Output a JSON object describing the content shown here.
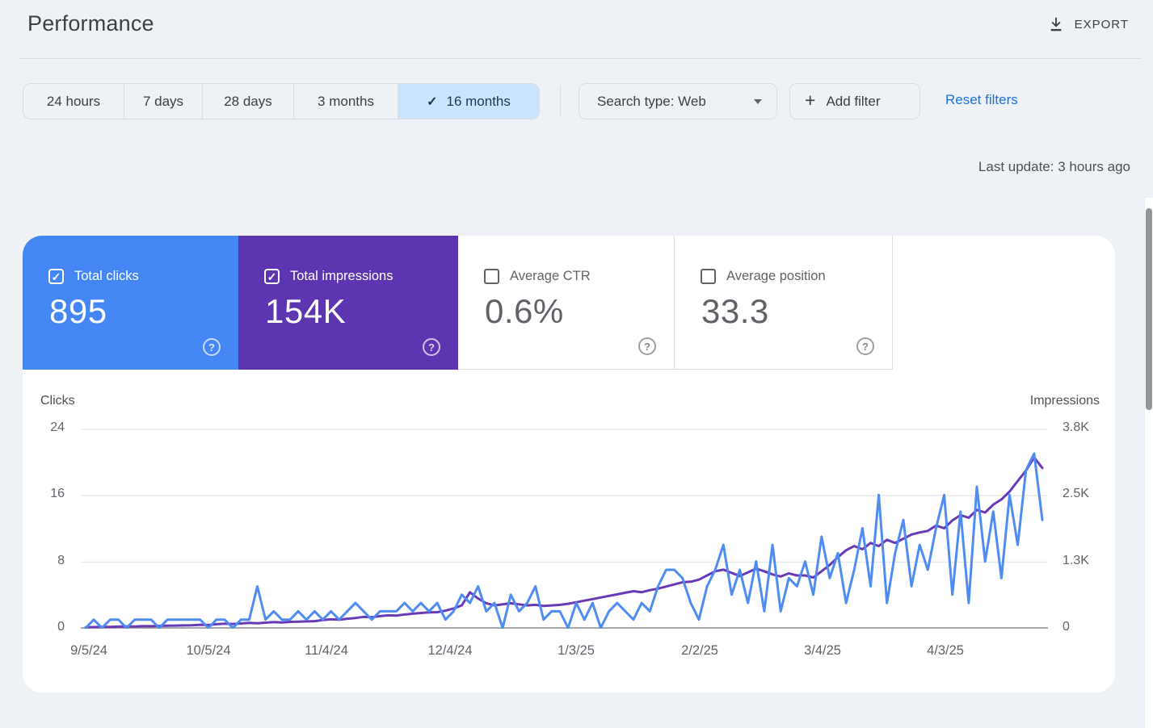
{
  "header": {
    "title": "Performance",
    "export_label": "EXPORT"
  },
  "toolbar": {
    "date_tabs": [
      {
        "label": "24 hours",
        "selected": false
      },
      {
        "label": "7 days",
        "selected": false
      },
      {
        "label": "28 days",
        "selected": false
      },
      {
        "label": "3 months",
        "selected": false
      },
      {
        "label": "16 months",
        "selected": true
      }
    ],
    "search_type_label": "Search type: Web",
    "add_filter_label": "Add filter",
    "reset_filters_label": "Reset filters"
  },
  "status": {
    "last_update": "Last update: 3 hours ago"
  },
  "metric_cards": [
    {
      "label": "Total clicks",
      "value": "895",
      "checked": true,
      "bg": "#4486f4"
    },
    {
      "label": "Total impressions",
      "value": "154K",
      "checked": true,
      "bg": "#5e35b1"
    },
    {
      "label": "Average CTR",
      "value": "0.6%",
      "checked": false,
      "bg": "#ffffff"
    },
    {
      "label": "Average position",
      "value": "33.3",
      "checked": false,
      "bg": "#ffffff"
    }
  ],
  "chart_data": {
    "type": "line",
    "title": "",
    "x_tick_labels": [
      "9/5/24",
      "10/5/24",
      "11/4/24",
      "12/4/24",
      "1/3/25",
      "2/2/25",
      "3/4/25",
      "4/3/25"
    ],
    "x_start": "9/5/24",
    "x_end": "4/29/25",
    "x_interval_days": 2,
    "left_axis": {
      "label": "Clicks",
      "ticks": [
        "0",
        "8",
        "16",
        "24"
      ],
      "min": 0,
      "max": 24
    },
    "right_axis": {
      "label": "Impressions",
      "ticks": [
        "0",
        "1.3K",
        "2.5K",
        "3.8K"
      ],
      "min": 0,
      "max": 3800
    },
    "grid": true,
    "legend_position": "none",
    "series": [
      {
        "name": "Total impressions",
        "axis": "right",
        "color": "#673ab7",
        "values": [
          10,
          15,
          20,
          18,
          25,
          30,
          28,
          35,
          32,
          38,
          42,
          45,
          48,
          50,
          60,
          55,
          70,
          80,
          75,
          85,
          95,
          90,
          100,
          110,
          105,
          115,
          120,
          125,
          130,
          150,
          165,
          155,
          175,
          190,
          210,
          205,
          225,
          240,
          235,
          255,
          270,
          285,
          295,
          300,
          330,
          370,
          430,
          680,
          560,
          470,
          430,
          450,
          470,
          450,
          430,
          440,
          420,
          430,
          440,
          460,
          490,
          520,
          550,
          580,
          610,
          640,
          670,
          700,
          680,
          720,
          750,
          790,
          830,
          870,
          880,
          920,
          1000,
          1080,
          1110,
          1050,
          990,
          1060,
          1130,
          1080,
          1020,
          980,
          1040,
          1000,
          1000,
          960,
          1080,
          1200,
          1350,
          1480,
          1560,
          1500,
          1620,
          1560,
          1680,
          1620,
          1700,
          1780,
          1820,
          1850,
          1950,
          1900,
          2050,
          2150,
          2100,
          2250,
          2200,
          2350,
          2450,
          2600,
          2800,
          3000,
          3250,
          3050
        ]
      },
      {
        "name": "Total clicks",
        "axis": "left",
        "color": "#4e8cf2",
        "values": [
          0,
          1,
          0,
          1,
          1,
          0,
          1,
          1,
          1,
          0,
          1,
          1,
          1,
          1,
          1,
          0,
          1,
          1,
          0,
          1,
          1,
          5,
          1,
          2,
          1,
          1,
          2,
          1,
          2,
          1,
          2,
          1,
          2,
          3,
          2,
          1,
          2,
          2,
          2,
          3,
          2,
          3,
          2,
          3,
          1,
          2,
          4,
          3,
          5,
          2,
          3,
          0,
          4,
          2,
          3,
          5,
          1,
          2,
          2,
          0,
          3,
          1,
          3,
          0,
          2,
          3,
          2,
          1,
          3,
          2,
          5,
          7,
          7,
          6,
          3,
          1,
          5,
          7,
          10,
          4,
          7,
          3,
          8,
          2,
          10,
          2,
          6,
          5,
          8,
          4,
          11,
          6,
          9,
          3,
          7,
          12,
          5,
          16,
          3,
          9,
          13,
          5,
          10,
          7,
          12,
          16,
          4,
          14,
          3,
          17,
          8,
          14,
          6,
          16,
          10,
          19,
          21,
          13
        ]
      }
    ]
  }
}
